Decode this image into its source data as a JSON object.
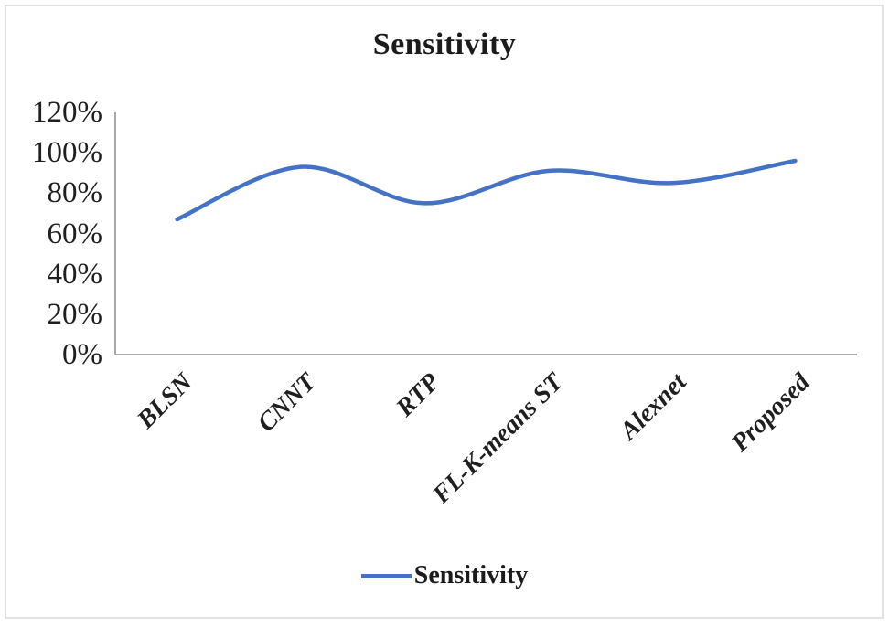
{
  "chart_data": {
    "type": "line",
    "title": "Sensitivity",
    "categories": [
      "BLSN",
      "CNNT",
      "RTP",
      "FL-K-means ST",
      "Alexnet",
      "Proposed"
    ],
    "series": [
      {
        "name": "Sensitivity",
        "values": [
          67,
          93,
          75,
          91,
          85,
          96
        ]
      }
    ],
    "xlabel": "",
    "ylabel": "",
    "y_ticks": [
      "120%",
      "100%",
      "80%",
      "60%",
      "40%",
      "20%",
      "0%"
    ],
    "ylim": [
      0,
      120
    ],
    "grid": false,
    "smooth": true,
    "legend_position": "bottom",
    "line_color": "#4472C4",
    "axis_color": "#A9A9A9",
    "text_color": "#1f1f1f"
  }
}
